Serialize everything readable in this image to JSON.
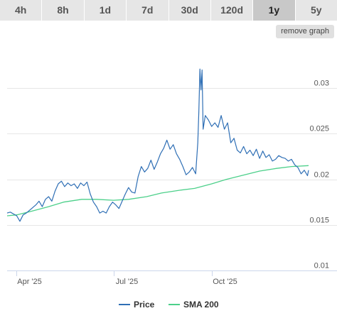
{
  "tabs": [
    {
      "label": "4h",
      "active": false
    },
    {
      "label": "8h",
      "active": false
    },
    {
      "label": "1d",
      "active": false
    },
    {
      "label": "7d",
      "active": false
    },
    {
      "label": "30d",
      "active": false
    },
    {
      "label": "120d",
      "active": false
    },
    {
      "label": "1y",
      "active": true
    },
    {
      "label": "5y",
      "active": false
    }
  ],
  "remove_graph_label": "remove graph",
  "colors": {
    "price": "#2f6fb5",
    "sma": "#4cd08a",
    "axis": "#ccd6eb",
    "grid": "#e6e6e6"
  },
  "chart_data": {
    "type": "line",
    "title": "",
    "xlabel": "",
    "ylabel": "",
    "ylim": [
      0.01,
      0.035
    ],
    "y_ticks": [
      0.01,
      0.015,
      0.02,
      0.025,
      0.03
    ],
    "y_tick_labels": [
      "0.01",
      "0.015",
      "0.02",
      "0.025",
      "0.03"
    ],
    "y_axis_side": "right",
    "xlim": [
      "2025-03-23",
      "2025-12-31"
    ],
    "x_ticks": [
      "2025-04-01",
      "2025-07-01",
      "2025-10-01"
    ],
    "x_tick_labels": [
      "Apr '25",
      "Jul '25",
      "Oct '25"
    ],
    "grid": true,
    "legend_position": "bottom-center",
    "series": [
      {
        "name": "Price",
        "color": "#2f6fb5",
        "x": [
          "2025-03-23",
          "2025-03-26",
          "2025-03-29",
          "2025-04-01",
          "2025-04-04",
          "2025-04-07",
          "2025-04-10",
          "2025-04-13",
          "2025-04-16",
          "2025-04-19",
          "2025-04-22",
          "2025-04-25",
          "2025-04-28",
          "2025-05-01",
          "2025-05-04",
          "2025-05-07",
          "2025-05-10",
          "2025-05-13",
          "2025-05-16",
          "2025-05-19",
          "2025-05-22",
          "2025-05-25",
          "2025-05-28",
          "2025-05-31",
          "2025-06-03",
          "2025-06-06",
          "2025-06-09",
          "2025-06-12",
          "2025-06-15",
          "2025-06-18",
          "2025-06-21",
          "2025-06-24",
          "2025-06-27",
          "2025-06-30",
          "2025-07-03",
          "2025-07-06",
          "2025-07-09",
          "2025-07-12",
          "2025-07-15",
          "2025-07-18",
          "2025-07-21",
          "2025-07-24",
          "2025-07-27",
          "2025-07-30",
          "2025-08-02",
          "2025-08-05",
          "2025-08-08",
          "2025-08-11",
          "2025-08-14",
          "2025-08-17",
          "2025-08-20",
          "2025-08-23",
          "2025-08-26",
          "2025-08-29",
          "2025-09-01",
          "2025-09-04",
          "2025-09-07",
          "2025-09-10",
          "2025-09-13",
          "2025-09-16",
          "2025-09-18",
          "2025-09-19",
          "2025-09-20",
          "2025-09-21",
          "2025-09-22",
          "2025-09-23",
          "2025-09-25",
          "2025-09-28",
          "2025-10-01",
          "2025-10-04",
          "2025-10-07",
          "2025-10-10",
          "2025-10-13",
          "2025-10-16",
          "2025-10-19",
          "2025-10-22",
          "2025-10-25",
          "2025-10-28",
          "2025-10-31",
          "2025-11-03",
          "2025-11-06",
          "2025-11-09",
          "2025-11-12",
          "2025-11-15",
          "2025-11-18",
          "2025-11-21",
          "2025-11-24",
          "2025-11-27",
          "2025-11-30",
          "2025-12-03",
          "2025-12-06",
          "2025-12-09",
          "2025-12-12",
          "2025-12-15",
          "2025-12-18",
          "2025-12-21",
          "2025-12-24",
          "2025-12-27",
          "2025-12-30",
          "2025-12-31"
        ],
        "y": [
          0.0163,
          0.0164,
          0.0162,
          0.016,
          0.0154,
          0.0161,
          0.0163,
          0.0166,
          0.0169,
          0.0172,
          0.0176,
          0.017,
          0.0178,
          0.0181,
          0.0176,
          0.0187,
          0.0195,
          0.0198,
          0.0192,
          0.0196,
          0.0193,
          0.0195,
          0.019,
          0.0196,
          0.0193,
          0.0197,
          0.0184,
          0.0175,
          0.017,
          0.0163,
          0.0165,
          0.0163,
          0.017,
          0.0175,
          0.0172,
          0.0168,
          0.0176,
          0.0184,
          0.0191,
          0.0186,
          0.0185,
          0.0203,
          0.0214,
          0.0208,
          0.0212,
          0.0221,
          0.0211,
          0.0219,
          0.0228,
          0.0234,
          0.0243,
          0.0233,
          0.0238,
          0.0228,
          0.0222,
          0.0214,
          0.0205,
          0.0208,
          0.0213,
          0.0206,
          0.024,
          0.0275,
          0.0321,
          0.0298,
          0.032,
          0.0255,
          0.027,
          0.0265,
          0.0258,
          0.0262,
          0.0257,
          0.027,
          0.0255,
          0.0262,
          0.024,
          0.0245,
          0.0232,
          0.0229,
          0.0236,
          0.0228,
          0.0232,
          0.0226,
          0.0233,
          0.0223,
          0.0231,
          0.0224,
          0.0227,
          0.022,
          0.0222,
          0.0226,
          0.0224,
          0.0223,
          0.022,
          0.0222,
          0.0216,
          0.0213,
          0.0206,
          0.021,
          0.0204,
          0.021
        ]
      },
      {
        "name": "SMA 200",
        "color": "#4cd08a",
        "x": [
          "2025-03-23",
          "2025-04-01",
          "2025-04-15",
          "2025-05-01",
          "2025-05-15",
          "2025-06-01",
          "2025-06-15",
          "2025-07-01",
          "2025-07-15",
          "2025-08-01",
          "2025-08-15",
          "2025-09-01",
          "2025-09-15",
          "2025-10-01",
          "2025-10-15",
          "2025-11-01",
          "2025-11-15",
          "2025-12-01",
          "2025-12-15",
          "2025-12-31"
        ],
        "y": [
          0.016,
          0.0161,
          0.0165,
          0.017,
          0.0175,
          0.0178,
          0.0178,
          0.0177,
          0.0178,
          0.0181,
          0.0185,
          0.0188,
          0.019,
          0.0195,
          0.02,
          0.0205,
          0.0209,
          0.0212,
          0.0214,
          0.0215
        ]
      }
    ]
  }
}
